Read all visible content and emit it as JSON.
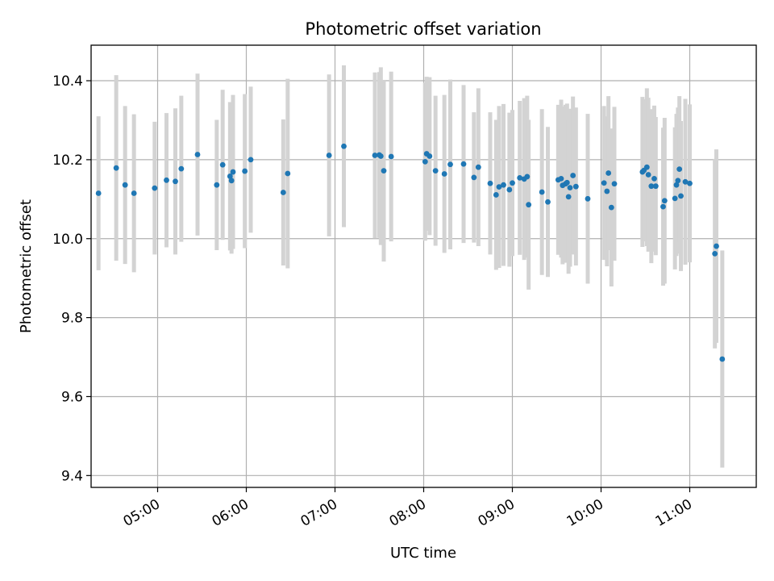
{
  "chart_data": {
    "type": "scatter",
    "title": "Photometric offset variation",
    "xlabel": "UTC time",
    "ylabel": "Photometric offset",
    "x_unit": "hours UTC",
    "xlim": [
      "04:15",
      "11:45"
    ],
    "ylim": [
      9.37,
      10.49
    ],
    "xticks": [
      "05:00",
      "06:00",
      "07:00",
      "08:00",
      "09:00",
      "10:00",
      "11:00"
    ],
    "yticks": [
      "9.4",
      "9.6",
      "9.8",
      "10.0",
      "10.2",
      "10.4"
    ],
    "grid": true,
    "legend": "none",
    "colors": {
      "point": "#1f77b4",
      "errorbar": "#d3d3d3",
      "grid": "#b0b0b0"
    },
    "points": [
      [
        "04:20",
        10.115,
        0.195
      ],
      [
        "04:32",
        10.179,
        0.235
      ],
      [
        "04:38",
        10.136,
        0.2
      ],
      [
        "04:44",
        10.115,
        0.2
      ],
      [
        "04:58",
        10.128,
        0.168
      ],
      [
        "05:06",
        10.148,
        0.17
      ],
      [
        "05:12",
        10.145,
        0.185
      ],
      [
        "05:16",
        10.177,
        0.185
      ],
      [
        "05:27",
        10.213,
        0.205
      ],
      [
        "05:40",
        10.136,
        0.165
      ],
      [
        "05:44",
        10.187,
        0.19
      ],
      [
        "05:49",
        10.158,
        0.188
      ],
      [
        "05:50",
        10.147,
        0.185
      ],
      [
        "05:51",
        10.169,
        0.195
      ],
      [
        "05:59",
        10.171,
        0.195
      ],
      [
        "06:03",
        10.2,
        0.185
      ],
      [
        "06:25",
        10.117,
        0.185
      ],
      [
        "06:28",
        10.165,
        0.24
      ],
      [
        "06:56",
        10.211,
        0.205
      ],
      [
        "07:06",
        10.234,
        0.205
      ],
      [
        "07:27",
        10.211,
        0.21
      ],
      [
        "07:30",
        10.212,
        0.21
      ],
      [
        "07:31",
        10.209,
        0.225
      ],
      [
        "07:33",
        10.172,
        0.23
      ],
      [
        "07:38",
        10.208,
        0.215
      ],
      [
        "08:01",
        10.195,
        0.2
      ],
      [
        "08:02",
        10.215,
        0.195
      ],
      [
        "08:04",
        10.209,
        0.2
      ],
      [
        "08:08",
        10.172,
        0.19
      ],
      [
        "08:14",
        10.164,
        0.2
      ],
      [
        "08:18",
        10.188,
        0.215
      ],
      [
        "08:27",
        10.189,
        0.2
      ],
      [
        "08:34",
        10.155,
        0.165
      ],
      [
        "08:37",
        10.181,
        0.2
      ],
      [
        "08:45",
        10.14,
        0.18
      ],
      [
        "08:49",
        10.111,
        0.19
      ],
      [
        "08:51",
        10.131,
        0.205
      ],
      [
        "08:54",
        10.136,
        0.205
      ],
      [
        "08:58",
        10.124,
        0.195
      ],
      [
        "09:00",
        10.141,
        0.185
      ],
      [
        "09:05",
        10.154,
        0.195
      ],
      [
        "09:08",
        10.151,
        0.205
      ],
      [
        "09:10",
        10.157,
        0.205
      ],
      [
        "09:11",
        10.086,
        0.215
      ],
      [
        "09:20",
        10.118,
        0.21
      ],
      [
        "09:24",
        10.093,
        0.19
      ],
      [
        "09:31",
        10.149,
        0.19
      ],
      [
        "09:33",
        10.152,
        0.2
      ],
      [
        "09:34",
        10.135,
        0.2
      ],
      [
        "09:36",
        10.139,
        0.2
      ],
      [
        "09:37",
        10.142,
        0.2
      ],
      [
        "09:38",
        10.106,
        0.195
      ],
      [
        "09:39",
        10.129,
        0.2
      ],
      [
        "09:41",
        10.16,
        0.2
      ],
      [
        "09:43",
        10.132,
        0.2
      ],
      [
        "09:51",
        10.101,
        0.215
      ],
      [
        "10:02",
        10.141,
        0.195
      ],
      [
        "10:04",
        10.12,
        0.19
      ],
      [
        "10:05",
        10.166,
        0.195
      ],
      [
        "10:07",
        10.079,
        0.2
      ],
      [
        "10:09",
        10.139,
        0.195
      ],
      [
        "10:28",
        10.169,
        0.19
      ],
      [
        "10:29",
        10.173,
        0.18
      ],
      [
        "10:31",
        10.181,
        0.2
      ],
      [
        "10:32",
        10.162,
        0.195
      ],
      [
        "10:34",
        10.133,
        0.195
      ],
      [
        "10:36",
        10.152,
        0.185
      ],
      [
        "10:37",
        10.133,
        0.175
      ],
      [
        "10:42",
        10.081,
        0.2
      ],
      [
        "10:43",
        10.096,
        0.21
      ],
      [
        "10:50",
        10.102,
        0.18
      ],
      [
        "10:51",
        10.136,
        0.18
      ],
      [
        "10:52",
        10.147,
        0.185
      ],
      [
        "10:53",
        10.176,
        0.185
      ],
      [
        "10:54",
        10.108,
        0.19
      ],
      [
        "10:57",
        10.144,
        0.21
      ],
      [
        "11:00",
        10.14,
        0.2
      ],
      [
        "11:17",
        9.962,
        0.24
      ],
      [
        "11:18",
        9.981,
        0.245
      ],
      [
        "11:22",
        9.695,
        0.275
      ]
    ]
  }
}
